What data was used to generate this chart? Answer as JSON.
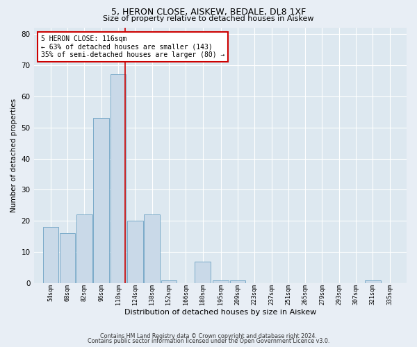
{
  "title1": "5, HERON CLOSE, AISKEW, BEDALE, DL8 1XF",
  "title2": "Size of property relative to detached houses in Aiskew",
  "xlabel": "Distribution of detached houses by size in Aiskew",
  "ylabel": "Number of detached properties",
  "bar_centers": [
    54,
    68,
    82,
    96,
    110,
    124,
    138,
    152,
    166,
    180,
    195,
    209,
    223,
    237,
    251,
    265,
    279,
    293,
    307,
    321,
    335
  ],
  "bar_heights": [
    18,
    16,
    22,
    53,
    67,
    20,
    22,
    1,
    0,
    7,
    1,
    1,
    0,
    0,
    0,
    0,
    0,
    0,
    0,
    1,
    0
  ],
  "bin_width": 14,
  "bar_color": "#c9d9e8",
  "bar_edge_color": "#7aaac8",
  "property_size": 116,
  "annotation_line1": "5 HERON CLOSE: 116sqm",
  "annotation_line2": "← 63% of detached houses are smaller (143)",
  "annotation_line3": "35% of semi-detached houses are larger (80) →",
  "annotation_box_color": "#ffffff",
  "annotation_box_edge_color": "#cc0000",
  "vline_color": "#cc0000",
  "ylim": [
    0,
    82
  ],
  "yticks": [
    0,
    10,
    20,
    30,
    40,
    50,
    60,
    70,
    80
  ],
  "tick_labels": [
    "54sqm",
    "68sqm",
    "82sqm",
    "96sqm",
    "110sqm",
    "124sqm",
    "138sqm",
    "152sqm",
    "166sqm",
    "180sqm",
    "195sqm",
    "209sqm",
    "223sqm",
    "237sqm",
    "251sqm",
    "265sqm",
    "279sqm",
    "293sqm",
    "307sqm",
    "321sqm",
    "335sqm"
  ],
  "background_color": "#dde8f0",
  "grid_color": "#ffffff",
  "fig_bg_color": "#e8eef5",
  "footer1": "Contains HM Land Registry data © Crown copyright and database right 2024.",
  "footer2": "Contains public sector information licensed under the Open Government Licence v3.0."
}
